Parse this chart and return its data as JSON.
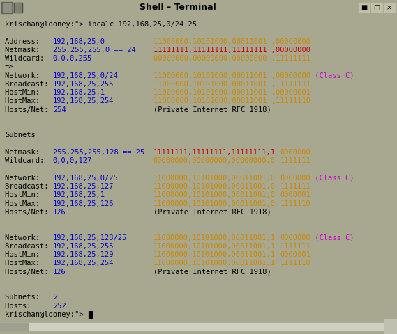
{
  "title": "Shell – Terminal",
  "title_bar_bg": "#8b8b6b",
  "outer_border_color": "#a8a890",
  "terminal_bg": "#ffffff",
  "color_map": {
    "black": "#000000",
    "blue": "#0000cc",
    "red": "#cc0000",
    "orange": "#cc8800",
    "magenta": "#cc00cc",
    "white": "#ffffff"
  },
  "lines": [
    [
      {
        "t": "krischan@looney:\"> ipcalc 192,168,25,0/24 25",
        "c": "black"
      }
    ],
    [],
    [
      {
        "t": "Address:   ",
        "c": "black"
      },
      {
        "t": "192,168,25,0",
        "c": "blue"
      },
      {
        "t": "           ",
        "c": "black"
      },
      {
        "t": "11000000,10101000,00011001 ,00000000",
        "c": "orange"
      }
    ],
    [
      {
        "t": "Netmask:   ",
        "c": "black"
      },
      {
        "t": "255,255,255,0 == 24",
        "c": "blue"
      },
      {
        "t": "    ",
        "c": "black"
      },
      {
        "t": "11111111,11111111,11111111 ,00000000",
        "c": "red"
      }
    ],
    [
      {
        "t": "Wildcard:  ",
        "c": "black"
      },
      {
        "t": "0,0,0,255",
        "c": "blue"
      },
      {
        "t": "              ",
        "c": "black"
      },
      {
        "t": "00000000,00000000,00000000 ,11111111",
        "c": "orange"
      }
    ],
    [
      {
        "t": "=>",
        "c": "black"
      }
    ],
    [
      {
        "t": "Network:   ",
        "c": "black"
      },
      {
        "t": "192,168,25,0/24",
        "c": "blue"
      },
      {
        "t": "        ",
        "c": "black"
      },
      {
        "t": "11000000,10101000,00011001 ,00000000",
        "c": "orange"
      },
      {
        "t": " (Class C)",
        "c": "magenta"
      }
    ],
    [
      {
        "t": "Broadcast: ",
        "c": "black"
      },
      {
        "t": "192,168,25,255",
        "c": "blue"
      },
      {
        "t": "         ",
        "c": "black"
      },
      {
        "t": "11000000,10101000,00011001 ,11111111",
        "c": "orange"
      }
    ],
    [
      {
        "t": "HostMin:   ",
        "c": "black"
      },
      {
        "t": "192,168,25,1",
        "c": "blue"
      },
      {
        "t": "           ",
        "c": "black"
      },
      {
        "t": "11000000,10101000,00011001 ,00000001",
        "c": "orange"
      }
    ],
    [
      {
        "t": "HostMax:   ",
        "c": "black"
      },
      {
        "t": "192,168,25,254",
        "c": "blue"
      },
      {
        "t": "         ",
        "c": "black"
      },
      {
        "t": "11000000,10101000,00011001 ,11111110",
        "c": "orange"
      }
    ],
    [
      {
        "t": "Hosts/Net: ",
        "c": "black"
      },
      {
        "t": "254",
        "c": "blue"
      },
      {
        "t": "                    (Private Internet RFC 1918)",
        "c": "black"
      }
    ],
    [],
    [],
    [
      {
        "t": "Subnets",
        "c": "black"
      }
    ],
    [],
    [
      {
        "t": "Netmask:   ",
        "c": "black"
      },
      {
        "t": "255,255,255,128 == 25",
        "c": "blue"
      },
      {
        "t": "  ",
        "c": "black"
      },
      {
        "t": "11111111,11111111,11111111,1",
        "c": "red"
      },
      {
        "t": " ",
        "c": "black"
      },
      {
        "t": "0000000",
        "c": "orange"
      }
    ],
    [
      {
        "t": "Wildcard:  ",
        "c": "black"
      },
      {
        "t": "0,0,0,127",
        "c": "blue"
      },
      {
        "t": "              ",
        "c": "black"
      },
      {
        "t": "00000000,00000000,00000000,0",
        "c": "orange"
      },
      {
        "t": " ",
        "c": "black"
      },
      {
        "t": "1111111",
        "c": "orange"
      }
    ],
    [],
    [
      {
        "t": "Network:   ",
        "c": "black"
      },
      {
        "t": "192,168,25,0/25",
        "c": "blue"
      },
      {
        "t": "        ",
        "c": "black"
      },
      {
        "t": "11000000,10101000,00011001,0",
        "c": "orange"
      },
      {
        "t": " ",
        "c": "black"
      },
      {
        "t": "0000000",
        "c": "orange"
      },
      {
        "t": " (Class C)",
        "c": "magenta"
      }
    ],
    [
      {
        "t": "Broadcast: ",
        "c": "black"
      },
      {
        "t": "192,168,25,127",
        "c": "blue"
      },
      {
        "t": "         ",
        "c": "black"
      },
      {
        "t": "11000000,10101000,00011001,0",
        "c": "orange"
      },
      {
        "t": " ",
        "c": "black"
      },
      {
        "t": "1111111",
        "c": "orange"
      }
    ],
    [
      {
        "t": "HostMin:   ",
        "c": "black"
      },
      {
        "t": "192,168,25,1",
        "c": "blue"
      },
      {
        "t": "           ",
        "c": "black"
      },
      {
        "t": "11000000,10101000,00011001,0",
        "c": "orange"
      },
      {
        "t": " ",
        "c": "black"
      },
      {
        "t": "0000001",
        "c": "orange"
      }
    ],
    [
      {
        "t": "HostMax:   ",
        "c": "black"
      },
      {
        "t": "192,168,25,126",
        "c": "blue"
      },
      {
        "t": "         ",
        "c": "black"
      },
      {
        "t": "11000000,10101000,00011001,0",
        "c": "orange"
      },
      {
        "t": " ",
        "c": "black"
      },
      {
        "t": "1111110",
        "c": "orange"
      }
    ],
    [
      {
        "t": "Hosts/Net: ",
        "c": "black"
      },
      {
        "t": "126",
        "c": "blue"
      },
      {
        "t": "                    (Private Internet RFC 1918)",
        "c": "black"
      }
    ],
    [],
    [],
    [
      {
        "t": "Network:   ",
        "c": "black"
      },
      {
        "t": "192,168,25,128/25",
        "c": "blue"
      },
      {
        "t": "      ",
        "c": "black"
      },
      {
        "t": "11000000,10101000,00011001,1",
        "c": "orange"
      },
      {
        "t": " ",
        "c": "black"
      },
      {
        "t": "0000000",
        "c": "orange"
      },
      {
        "t": " (Class C)",
        "c": "magenta"
      }
    ],
    [
      {
        "t": "Broadcast: ",
        "c": "black"
      },
      {
        "t": "192,168,25,255",
        "c": "blue"
      },
      {
        "t": "         ",
        "c": "black"
      },
      {
        "t": "11000000,10101000,00011001,1",
        "c": "orange"
      },
      {
        "t": " ",
        "c": "black"
      },
      {
        "t": "1111111",
        "c": "orange"
      }
    ],
    [
      {
        "t": "HostMin:   ",
        "c": "black"
      },
      {
        "t": "192,168,25,129",
        "c": "blue"
      },
      {
        "t": "         ",
        "c": "black"
      },
      {
        "t": "11000000,10101000,00011001,1",
        "c": "orange"
      },
      {
        "t": " ",
        "c": "black"
      },
      {
        "t": "0000001",
        "c": "orange"
      }
    ],
    [
      {
        "t": "HostMax:   ",
        "c": "black"
      },
      {
        "t": "192,168,25,254",
        "c": "blue"
      },
      {
        "t": "         ",
        "c": "black"
      },
      {
        "t": "11000000,10101000,00011001,1",
        "c": "orange"
      },
      {
        "t": " ",
        "c": "black"
      },
      {
        "t": "1111110",
        "c": "orange"
      }
    ],
    [
      {
        "t": "Hosts/Net: ",
        "c": "black"
      },
      {
        "t": "126",
        "c": "blue"
      },
      {
        "t": "                    (Private Internet RFC 1918)",
        "c": "black"
      }
    ],
    [],
    [],
    [
      {
        "t": "Subnets:   ",
        "c": "black"
      },
      {
        "t": "2",
        "c": "blue"
      }
    ],
    [
      {
        "t": "Hosts:     ",
        "c": "black"
      },
      {
        "t": "252",
        "c": "blue"
      }
    ],
    [
      {
        "t": "krischan@looney:\"> ",
        "c": "black"
      },
      {
        "t": "█",
        "c": "black"
      }
    ]
  ]
}
